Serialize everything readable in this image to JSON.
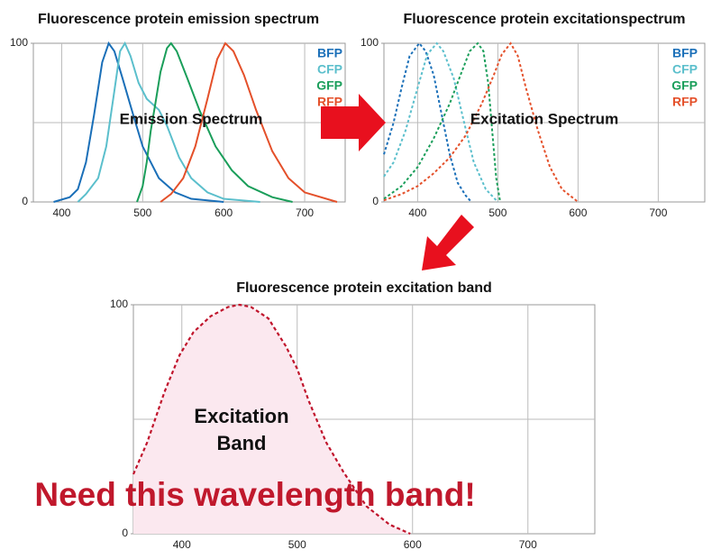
{
  "chart_data": [
    {
      "type": "line",
      "title": "Fluorescence protein emission spectrum",
      "annotation": "Emission Spectrum",
      "xlim": [
        365,
        750
      ],
      "ylim": [
        0,
        100
      ],
      "xticks": [
        400,
        500,
        600,
        700
      ],
      "yticks": [
        0,
        100
      ],
      "ygrid": [
        50
      ],
      "grid": true,
      "legend": "top-right",
      "series": [
        {
          "name": "BFP",
          "color": "#1a6fb8",
          "x": [
            390,
            410,
            420,
            430,
            440,
            450,
            458,
            465,
            475,
            490,
            500,
            520,
            540,
            560,
            600
          ],
          "values": [
            0,
            3,
            8,
            25,
            55,
            88,
            100,
            95,
            78,
            52,
            35,
            15,
            6,
            2,
            0
          ]
        },
        {
          "name": "CFP",
          "color": "#5bbfcc",
          "x": [
            420,
            430,
            445,
            455,
            465,
            472,
            478,
            485,
            495,
            505,
            520,
            530,
            545,
            560,
            580,
            600,
            645
          ],
          "values": [
            0,
            5,
            15,
            35,
            70,
            95,
            100,
            92,
            75,
            65,
            58,
            48,
            28,
            15,
            6,
            2,
            0
          ]
        },
        {
          "name": "GFP",
          "color": "#1a9e5a",
          "x": [
            493,
            500,
            505,
            510,
            515,
            522,
            530,
            535,
            542,
            555,
            570,
            590,
            610,
            630,
            660,
            685
          ],
          "values": [
            0,
            10,
            25,
            45,
            60,
            82,
            97,
            100,
            95,
            78,
            58,
            35,
            20,
            10,
            3,
            0
          ]
        },
        {
          "name": "RFP",
          "color": "#e4502a",
          "x": [
            522,
            535,
            550,
            565,
            580,
            592,
            602,
            612,
            625,
            640,
            660,
            680,
            700,
            740
          ],
          "values": [
            0,
            5,
            15,
            35,
            65,
            90,
            100,
            95,
            80,
            58,
            32,
            15,
            6,
            0
          ]
        }
      ]
    },
    {
      "type": "line",
      "title": "Fluorescence protein excitationspectrum",
      "annotation": "Excitation Spectrum",
      "xlim": [
        358,
        758
      ],
      "ylim": [
        0,
        100
      ],
      "xticks": [
        400,
        500,
        600,
        700
      ],
      "yticks": [
        0,
        100
      ],
      "ygrid": [
        50
      ],
      "grid": true,
      "legend": "top-right",
      "dashed": true,
      "series": [
        {
          "name": "BFP",
          "color": "#1a6fb8",
          "x": [
            358,
            370,
            380,
            390,
            402,
            410,
            420,
            430,
            440,
            450,
            460,
            467
          ],
          "values": [
            30,
            50,
            72,
            92,
            100,
            95,
            80,
            55,
            30,
            12,
            4,
            0
          ]
        },
        {
          "name": "CFP",
          "color": "#5bbfcc",
          "x": [
            358,
            370,
            385,
            400,
            412,
            424,
            432,
            445,
            458,
            470,
            485,
            500
          ],
          "values": [
            16,
            25,
            45,
            72,
            93,
            100,
            95,
            78,
            50,
            25,
            8,
            0
          ]
        },
        {
          "name": "GFP",
          "color": "#1a9e5a",
          "x": [
            358,
            380,
            400,
            420,
            440,
            455,
            465,
            475,
            482,
            488,
            493,
            498,
            503
          ],
          "values": [
            2,
            10,
            22,
            40,
            62,
            82,
            95,
            100,
            95,
            75,
            45,
            15,
            0
          ]
        },
        {
          "name": "RFP",
          "color": "#e4502a",
          "x": [
            358,
            380,
            400,
            420,
            440,
            460,
            480,
            495,
            505,
            516,
            525,
            535,
            550,
            565,
            580,
            600
          ],
          "values": [
            1,
            5,
            10,
            18,
            28,
            42,
            62,
            80,
            93,
            100,
            92,
            72,
            45,
            22,
            8,
            0
          ]
        }
      ]
    },
    {
      "type": "area",
      "title": "Fluorescence protein excitation band",
      "annotation": [
        "Excitation",
        "Band"
      ],
      "callout": "Need this wavelength band!",
      "xlim": [
        358,
        758
      ],
      "ylim": [
        0,
        100
      ],
      "xticks": [
        400,
        500,
        600,
        700
      ],
      "yticks": [
        0,
        100
      ],
      "ygrid": [
        50
      ],
      "grid": true,
      "dashed": true,
      "fill": "#fbe8ef",
      "series": [
        {
          "color": "#c0142c",
          "x": [
            358,
            370,
            385,
            398,
            410,
            425,
            440,
            450,
            460,
            475,
            490,
            500,
            510,
            525,
            540,
            560,
            580,
            598
          ],
          "values": [
            26,
            40,
            62,
            78,
            88,
            95,
            99,
            100,
            99,
            94,
            82,
            72,
            58,
            40,
            27,
            12,
            4,
            0
          ]
        }
      ]
    }
  ]
}
